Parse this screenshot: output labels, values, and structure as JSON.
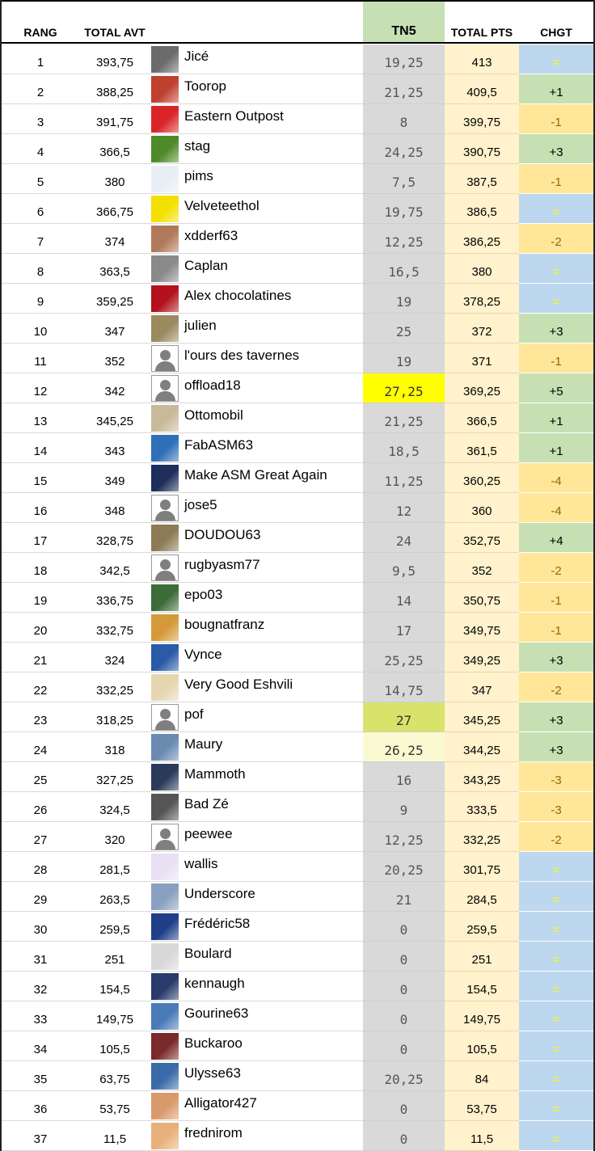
{
  "headers": {
    "rang": "RANG",
    "total_avt": "TOTAL AVT",
    "tn5": "TN5",
    "total_pts": "TOTAL PTS",
    "chgt": "CHGT"
  },
  "colors": {
    "tn5_header": "#c6e0b4",
    "tn5_column": "#d9d9d9",
    "total_pts_column": "#fff2cc",
    "chgt_equal": "#bdd7ee",
    "chgt_up": "#c6e0b4",
    "chgt_down": "#ffe699",
    "best_tn5_highlight": "#ffff00"
  },
  "rows": [
    {
      "rang": "1",
      "total_avt": "393,75",
      "name": "Jicé",
      "tn5": "19,25",
      "total_pts": "413",
      "chgt": "=",
      "chg_type": "eq",
      "avatar": "photo",
      "avatar_color": "#6b6b6b"
    },
    {
      "rang": "2",
      "total_avt": "388,25",
      "name": "Toorop",
      "tn5": "21,25",
      "total_pts": "409,5",
      "chgt": "+1",
      "chg_type": "up",
      "avatar": "photo",
      "avatar_color": "#c04030"
    },
    {
      "rang": "3",
      "total_avt": "391,75",
      "name": "Eastern Outpost",
      "tn5": "8",
      "total_pts": "399,75",
      "chgt": "-1",
      "chg_type": "down",
      "avatar": "photo",
      "avatar_color": "#d9252a"
    },
    {
      "rang": "4",
      "total_avt": "366,5",
      "name": "stag",
      "tn5": "24,25",
      "total_pts": "390,75",
      "chgt": "+3",
      "chg_type": "up",
      "avatar": "photo",
      "avatar_color": "#4f8a2a"
    },
    {
      "rang": "5",
      "total_avt": "380",
      "name": "pims",
      "tn5": "7,5",
      "total_pts": "387,5",
      "chgt": "-1",
      "chg_type": "down",
      "avatar": "photo",
      "avatar_color": "#e8eef5"
    },
    {
      "rang": "6",
      "total_avt": "366,75",
      "name": "Velveteethol",
      "tn5": "19,75",
      "total_pts": "386,5",
      "chgt": "=",
      "chg_type": "eq",
      "avatar": "photo",
      "avatar_color": "#f3e000"
    },
    {
      "rang": "7",
      "total_avt": "374",
      "name": "xdderf63",
      "tn5": "12,25",
      "total_pts": "386,25",
      "chgt": "-2",
      "chg_type": "down",
      "avatar": "photo",
      "avatar_color": "#b07a5a"
    },
    {
      "rang": "8",
      "total_avt": "363,5",
      "name": "Caplan",
      "tn5": "16,5",
      "total_pts": "380",
      "chgt": "=",
      "chg_type": "eq",
      "avatar": "photo",
      "avatar_color": "#8a8a8a"
    },
    {
      "rang": "9",
      "total_avt": "359,25",
      "name": "Alex chocolatines",
      "tn5": "19",
      "total_pts": "378,25",
      "chgt": "=",
      "chg_type": "eq",
      "avatar": "photo",
      "avatar_color": "#b3121c"
    },
    {
      "rang": "10",
      "total_avt": "347",
      "name": "julien",
      "tn5": "25",
      "total_pts": "372",
      "chgt": "+3",
      "chg_type": "up",
      "avatar": "photo",
      "avatar_color": "#9a8a60"
    },
    {
      "rang": "11",
      "total_avt": "352",
      "name": "l'ours des tavernes",
      "tn5": "19",
      "total_pts": "371",
      "chgt": "-1",
      "chg_type": "down",
      "avatar": "default",
      "avatar_color": "#7f7f7f"
    },
    {
      "rang": "12",
      "total_avt": "342",
      "name": "offload18",
      "tn5": "27,25",
      "total_pts": "369,25",
      "chgt": "+5",
      "chg_type": "up",
      "avatar": "default",
      "avatar_color": "#7f7f7f",
      "tn5_style": "yellow"
    },
    {
      "rang": "13",
      "total_avt": "345,25",
      "name": "Ottomobil",
      "tn5": "21,25",
      "total_pts": "366,5",
      "chgt": "+1",
      "chg_type": "up",
      "avatar": "photo",
      "avatar_color": "#c9b99a"
    },
    {
      "rang": "14",
      "total_avt": "343",
      "name": "FabASM63",
      "tn5": "18,5",
      "total_pts": "361,5",
      "chgt": "+1",
      "chg_type": "up",
      "avatar": "photo",
      "avatar_color": "#2f6fb8"
    },
    {
      "rang": "15",
      "total_avt": "349",
      "name": "Make ASM Great Again",
      "tn5": "11,25",
      "total_pts": "360,25",
      "chgt": "-4",
      "chg_type": "down",
      "avatar": "photo",
      "avatar_color": "#1e2e5a"
    },
    {
      "rang": "16",
      "total_avt": "348",
      "name": "jose5",
      "tn5": "12",
      "total_pts": "360",
      "chgt": "-4",
      "chg_type": "down",
      "avatar": "default",
      "avatar_color": "#7f7f7f"
    },
    {
      "rang": "17",
      "total_avt": "328,75",
      "name": "DOUDOU63",
      "tn5": "24",
      "total_pts": "352,75",
      "chgt": "+4",
      "chg_type": "up",
      "avatar": "photo",
      "avatar_color": "#8c7b55"
    },
    {
      "rang": "18",
      "total_avt": "342,5",
      "name": "rugbyasm77",
      "tn5": "9,5",
      "total_pts": "352",
      "chgt": "-2",
      "chg_type": "down",
      "avatar": "default",
      "avatar_color": "#7f7f7f"
    },
    {
      "rang": "19",
      "total_avt": "336,75",
      "name": "epo03",
      "tn5": "14",
      "total_pts": "350,75",
      "chgt": "-1",
      "chg_type": "down",
      "avatar": "photo",
      "avatar_color": "#3d6b3a"
    },
    {
      "rang": "20",
      "total_avt": "332,75",
      "name": "bougnatfranz",
      "tn5": "17",
      "total_pts": "349,75",
      "chgt": "-1",
      "chg_type": "down",
      "avatar": "photo",
      "avatar_color": "#d49a3a"
    },
    {
      "rang": "21",
      "total_avt": "324",
      "name": "Vynce",
      "tn5": "25,25",
      "total_pts": "349,25",
      "chgt": "+3",
      "chg_type": "up",
      "avatar": "photo",
      "avatar_color": "#2a5aa8"
    },
    {
      "rang": "22",
      "total_avt": "332,25",
      "name": "Very Good Eshvili",
      "tn5": "14,75",
      "total_pts": "347",
      "chgt": "-2",
      "chg_type": "down",
      "avatar": "photo",
      "avatar_color": "#e6d6b0"
    },
    {
      "rang": "23",
      "total_avt": "318,25",
      "name": "pof",
      "tn5": "27",
      "total_pts": "345,25",
      "chgt": "+3",
      "chg_type": "up",
      "avatar": "default",
      "avatar_color": "#7f7f7f",
      "tn5_style": "lime"
    },
    {
      "rang": "24",
      "total_avt": "318",
      "name": "Maury",
      "tn5": "26,25",
      "total_pts": "344,25",
      "chgt": "+3",
      "chg_type": "up",
      "avatar": "photo",
      "avatar_color": "#6a8ab0",
      "tn5_style": "pale"
    },
    {
      "rang": "25",
      "total_avt": "327,25",
      "name": "Mammoth",
      "tn5": "16",
      "total_pts": "343,25",
      "chgt": "-3",
      "chg_type": "down",
      "avatar": "photo",
      "avatar_color": "#2a3a5a"
    },
    {
      "rang": "26",
      "total_avt": "324,5",
      "name": "Bad Zé",
      "tn5": "9",
      "total_pts": "333,5",
      "chgt": "-3",
      "chg_type": "down",
      "avatar": "photo",
      "avatar_color": "#555555"
    },
    {
      "rang": "27",
      "total_avt": "320",
      "name": "peewee",
      "tn5": "12,25",
      "total_pts": "332,25",
      "chgt": "-2",
      "chg_type": "down",
      "avatar": "default",
      "avatar_color": "#7f7f7f"
    },
    {
      "rang": "28",
      "total_avt": "281,5",
      "name": "wallis",
      "tn5": "20,25",
      "total_pts": "301,75",
      "chgt": "=",
      "chg_type": "eq",
      "avatar": "photo",
      "avatar_color": "#e9e0f5"
    },
    {
      "rang": "29",
      "total_avt": "263,5",
      "name": "Underscore",
      "tn5": "21",
      "total_pts": "284,5",
      "chgt": "=",
      "chg_type": "eq",
      "avatar": "photo",
      "avatar_color": "#8aa0c0"
    },
    {
      "rang": "30",
      "total_avt": "259,5",
      "name": "Frédéric58",
      "tn5": "0",
      "total_pts": "259,5",
      "chgt": "=",
      "chg_type": "eq",
      "avatar": "photo",
      "avatar_color": "#1f3f8a"
    },
    {
      "rang": "31",
      "total_avt": "251",
      "name": "Boulard",
      "tn5": "0",
      "total_pts": "251",
      "chgt": "=",
      "chg_type": "eq",
      "avatar": "photo",
      "avatar_color": "#d8d8d8"
    },
    {
      "rang": "32",
      "total_avt": "154,5",
      "name": "kennaugh",
      "tn5": "0",
      "total_pts": "154,5",
      "chgt": "=",
      "chg_type": "eq",
      "avatar": "photo",
      "avatar_color": "#2a3a6a"
    },
    {
      "rang": "33",
      "total_avt": "149,75",
      "name": "Gourine63",
      "tn5": "0",
      "total_pts": "149,75",
      "chgt": "=",
      "chg_type": "eq",
      "avatar": "photo",
      "avatar_color": "#4a7ab8"
    },
    {
      "rang": "34",
      "total_avt": "105,5",
      "name": "Buckaroo",
      "tn5": "0",
      "total_pts": "105,5",
      "chgt": "=",
      "chg_type": "eq",
      "avatar": "photo",
      "avatar_color": "#7a2a2a"
    },
    {
      "rang": "35",
      "total_avt": "63,75",
      "name": "Ulysse63",
      "tn5": "20,25",
      "total_pts": "84",
      "chgt": "=",
      "chg_type": "eq",
      "avatar": "photo",
      "avatar_color": "#3a6aa8"
    },
    {
      "rang": "36",
      "total_avt": "53,75",
      "name": "Alligator427",
      "tn5": "0",
      "total_pts": "53,75",
      "chgt": "=",
      "chg_type": "eq",
      "avatar": "photo",
      "avatar_color": "#d89a6a"
    },
    {
      "rang": "37",
      "total_avt": "11,5",
      "name": "frednirom",
      "tn5": "0",
      "total_pts": "11,5",
      "chgt": "=",
      "chg_type": "eq",
      "avatar": "photo",
      "avatar_color": "#e8b07a"
    }
  ]
}
